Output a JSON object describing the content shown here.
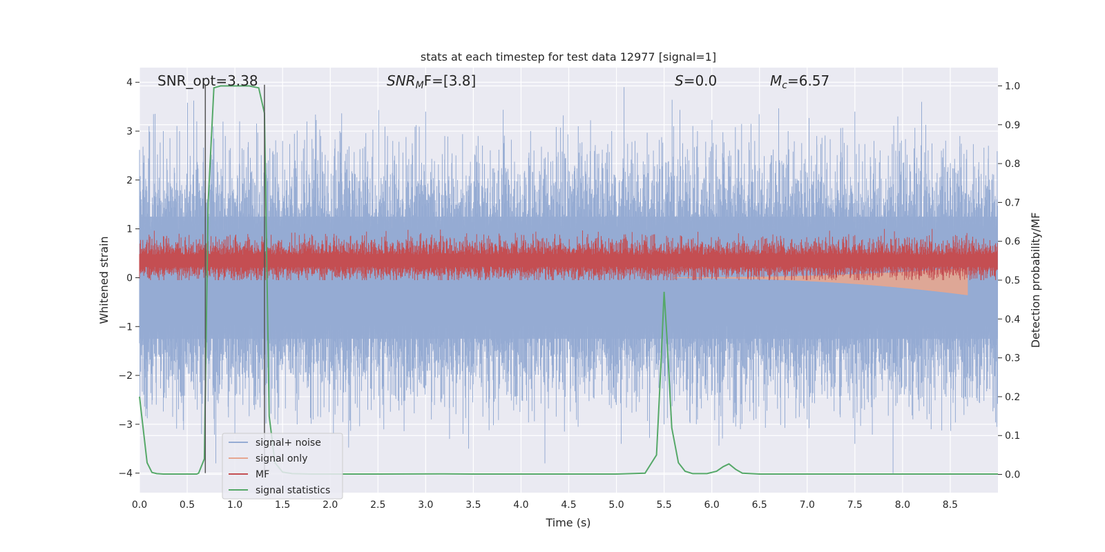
{
  "chart_data": {
    "type": "line",
    "title": "stats at each timestep for test data 12977 [signal=1]",
    "xlabel": "Time (s)",
    "ylabel": "Whitened strain",
    "y2label": "Detection probability/MF",
    "xlim": [
      0.0,
      9.0
    ],
    "ylim": [
      -4.4,
      4.3
    ],
    "y2lim": [
      -0.047,
      1.047
    ],
    "xticks": [
      "0.0",
      "0.5",
      "1.0",
      "1.5",
      "2.0",
      "2.5",
      "3.0",
      "3.5",
      "4.0",
      "4.5",
      "5.0",
      "5.5",
      "6.0",
      "6.5",
      "7.0",
      "7.5",
      "8.0",
      "8.5"
    ],
    "yticks": [
      "4",
      "3",
      "2",
      "1",
      "0",
      "−1",
      "−2",
      "−3",
      "−4"
    ],
    "y2ticks": [
      "1.0",
      "0.9",
      "0.8",
      "0.7",
      "0.6",
      "0.5",
      "0.4",
      "0.3",
      "0.2",
      "0.1",
      "0.0"
    ],
    "grid": true,
    "legend_position": "lower-left",
    "annotations": {
      "snr_opt": "SNR_opt=3.38",
      "snr_mf_main": "SNR",
      "snr_mf_sub": "M",
      "snr_mf_rest": "F=[3.8]",
      "s_var": "S",
      "s_rest": "=0.0",
      "mc_var": "M",
      "mc_sub": "c",
      "mc_rest": "=6.57"
    },
    "vertical_markers": [
      0.69,
      1.31
    ],
    "series": [
      {
        "name": "signal+ noise",
        "color": "#95abd3",
        "axis": "left",
        "kind": "noise",
        "envelope_upper_typical": 1.6,
        "envelope_lower_typical": -1.6,
        "spikes": [
          [
            0.1,
            3.1
          ],
          [
            0.25,
            3.0
          ],
          [
            0.42,
            3.0
          ],
          [
            0.6,
            3.2
          ],
          [
            0.9,
            2.9
          ],
          [
            1.05,
            3.2
          ],
          [
            1.35,
            2.4
          ],
          [
            1.5,
            2.8
          ],
          [
            1.9,
            2.9
          ],
          [
            2.1,
            3.0
          ],
          [
            2.6,
            2.9
          ],
          [
            3.0,
            3.4
          ],
          [
            3.2,
            2.9
          ],
          [
            3.55,
            2.9
          ],
          [
            4.1,
            3.0
          ],
          [
            4.6,
            3.1
          ],
          [
            4.95,
            3.0
          ],
          [
            5.08,
            3.9
          ],
          [
            5.6,
            3.1
          ],
          [
            5.85,
            3.0
          ],
          [
            6.2,
            2.5
          ],
          [
            6.45,
            2.8
          ],
          [
            6.8,
            3.0
          ],
          [
            7.1,
            2.9
          ],
          [
            7.5,
            3.4
          ],
          [
            7.7,
            2.8
          ],
          [
            7.95,
            3.3
          ],
          [
            8.2,
            3.6
          ],
          [
            8.6,
            2.9
          ],
          [
            8.9,
            2.7
          ],
          [
            0.65,
            -3.2
          ],
          [
            0.8,
            -3.8
          ],
          [
            1.0,
            -3.2
          ],
          [
            1.45,
            -3.0
          ],
          [
            2.05,
            -2.8
          ],
          [
            2.55,
            -2.6
          ],
          [
            3.25,
            -3.3
          ],
          [
            3.45,
            -3.5
          ],
          [
            4.25,
            -3.8
          ],
          [
            5.05,
            -3.4
          ],
          [
            5.5,
            -3.0
          ],
          [
            6.3,
            -3.1
          ],
          [
            7.0,
            -2.9
          ],
          [
            7.5,
            -3.4
          ],
          [
            7.9,
            -4.0
          ],
          [
            8.3,
            -3.1
          ]
        ]
      },
      {
        "name": "signal only",
        "color": "#e6a68f",
        "axis": "left",
        "kind": "chirp",
        "start": 5.6,
        "end": 8.68,
        "peak_amplitude": 0.35
      },
      {
        "name": "MF",
        "color": "#c44e52",
        "axis": "left",
        "kind": "band",
        "center": 0.35,
        "amplitude": 0.35
      },
      {
        "name": "signal statistics",
        "color": "#55a868",
        "axis": "right",
        "kind": "line",
        "x": [
          0.0,
          0.08,
          0.13,
          0.18,
          0.25,
          0.35,
          0.5,
          0.6,
          0.62,
          0.68,
          0.72,
          0.78,
          0.85,
          1.0,
          1.15,
          1.25,
          1.31,
          1.36,
          1.42,
          1.5,
          1.6,
          1.8,
          2.5,
          3.2,
          3.5,
          4.5,
          5.0,
          5.3,
          5.42,
          5.47,
          5.5,
          5.53,
          5.58,
          5.65,
          5.72,
          5.8,
          5.95,
          6.05,
          6.12,
          6.18,
          6.25,
          6.32,
          6.5,
          7.0,
          8.0,
          9.0
        ],
        "y": [
          0.2,
          0.03,
          0.005,
          0.002,
          0.001,
          0.001,
          0.001,
          0.001,
          0.003,
          0.04,
          0.7,
          0.995,
          1.0,
          1.0,
          1.0,
          0.995,
          0.93,
          0.15,
          0.03,
          0.006,
          0.002,
          0.001,
          0.001,
          0.0015,
          0.001,
          0.001,
          0.001,
          0.003,
          0.05,
          0.3,
          0.47,
          0.35,
          0.12,
          0.03,
          0.008,
          0.002,
          0.002,
          0.008,
          0.02,
          0.027,
          0.013,
          0.003,
          0.001,
          0.001,
          0.001,
          0.001
        ]
      }
    ]
  }
}
